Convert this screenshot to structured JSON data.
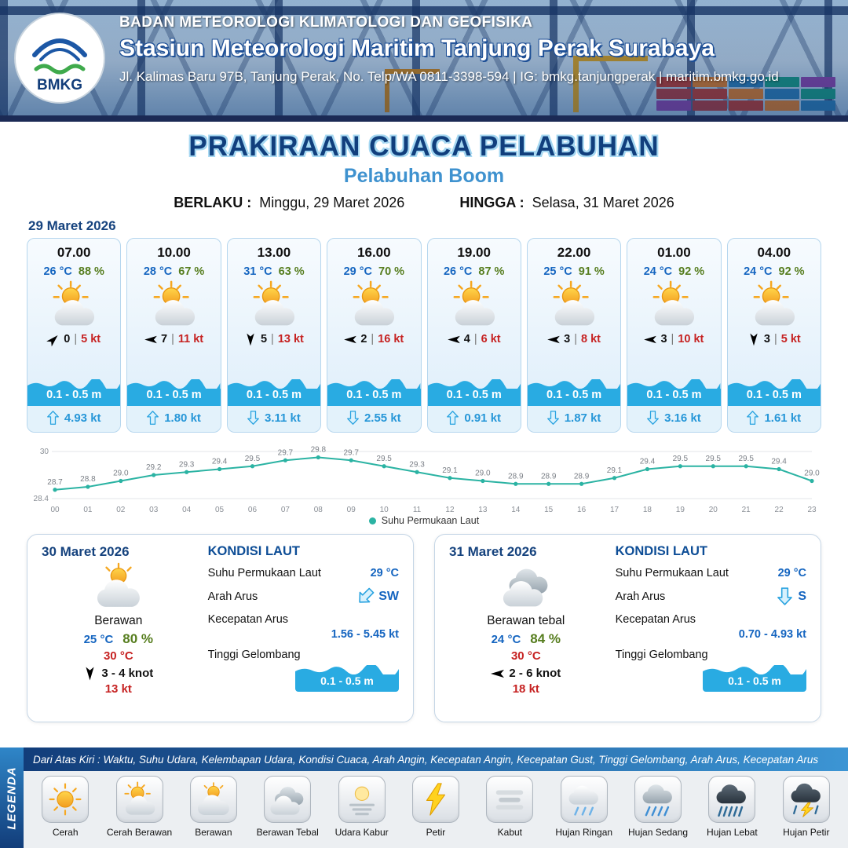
{
  "header": {
    "logo_text": "BMKG",
    "org": "BADAN METEOROLOGI KLIMATOLOGI DAN GEOFISIKA",
    "station": "Stasiun Meteorologi Maritim Tanjung Perak Surabaya",
    "address": "Jl. Kalimas Baru 97B, Tanjung Perak, No. Telp/WA 0811-3398-594 | IG: bmkg.tanjungperak | maritim.bmkg.go.id"
  },
  "title": {
    "main": "PRAKIRAAN CUACA PELABUHAN",
    "port": "Pelabuhan Boom",
    "berlaku_label": "BERLAKU :",
    "berlaku_value": "Minggu, 29 Maret 2026",
    "hingga_label": "HINGGA :",
    "hingga_value": "Selasa, 31 Maret 2026"
  },
  "forecast": {
    "date": "29 Maret 2026",
    "divider": "|",
    "cards": [
      {
        "time": "07.00",
        "temp": "26 °C",
        "humidity": "88 %",
        "icon": "cerah-berawan",
        "wind_dir": "NE",
        "wind_speed": "0",
        "gust": "5 kt",
        "wave": "0.1 - 0.5 m",
        "current_dir": "N",
        "current_speed": "4.93 kt"
      },
      {
        "time": "10.00",
        "temp": "28 °C",
        "humidity": "67 %",
        "icon": "cerah-berawan",
        "wind_dir": "W",
        "wind_speed": "7",
        "gust": "11 kt",
        "wave": "0.1 - 0.5 m",
        "current_dir": "N",
        "current_speed": "1.80 kt"
      },
      {
        "time": "13.00",
        "temp": "31 °C",
        "humidity": "63 %",
        "icon": "cerah-berawan",
        "wind_dir": "S",
        "wind_speed": "5",
        "gust": "13 kt",
        "wave": "0.1 - 0.5 m",
        "current_dir": "S",
        "current_speed": "3.11 kt"
      },
      {
        "time": "16.00",
        "temp": "29 °C",
        "humidity": "70 %",
        "icon": "cerah-berawan",
        "wind_dir": "W",
        "wind_speed": "2",
        "gust": "16 kt",
        "wave": "0.1 - 0.5 m",
        "current_dir": "S",
        "current_speed": "2.55 kt"
      },
      {
        "time": "19.00",
        "temp": "26 °C",
        "humidity": "87 %",
        "icon": "cerah-berawan",
        "wind_dir": "W",
        "wind_speed": "4",
        "gust": "6 kt",
        "wave": "0.1 - 0.5 m",
        "current_dir": "N",
        "current_speed": "0.91 kt"
      },
      {
        "time": "22.00",
        "temp": "25 °C",
        "humidity": "91 %",
        "icon": "cerah-berawan",
        "wind_dir": "W",
        "wind_speed": "3",
        "gust": "8 kt",
        "wave": "0.1 - 0.5 m",
        "current_dir": "S",
        "current_speed": "1.87 kt"
      },
      {
        "time": "01.00",
        "temp": "24 °C",
        "humidity": "92 %",
        "icon": "cerah-berawan",
        "wind_dir": "W",
        "wind_speed": "3",
        "gust": "10 kt",
        "wave": "0.1 - 0.5 m",
        "current_dir": "S",
        "current_speed": "3.16 kt"
      },
      {
        "time": "04.00",
        "temp": "24 °C",
        "humidity": "92 %",
        "icon": "cerah-berawan",
        "wind_dir": "S",
        "wind_speed": "3",
        "gust": "5 kt",
        "wave": "0.1 - 0.5 m",
        "current_dir": "N",
        "current_speed": "1.61 kt"
      }
    ]
  },
  "chart_data": {
    "type": "line",
    "title": "",
    "series_name": "Suhu Permukaan Laut",
    "x": [
      "00",
      "01",
      "02",
      "03",
      "04",
      "05",
      "06",
      "07",
      "08",
      "09",
      "10",
      "11",
      "12",
      "13",
      "14",
      "15",
      "16",
      "17",
      "18",
      "19",
      "20",
      "21",
      "22",
      "23"
    ],
    "values": [
      28.7,
      28.8,
      29.0,
      29.2,
      29.3,
      29.4,
      29.5,
      29.7,
      29.8,
      29.7,
      29.5,
      29.3,
      29.1,
      29.0,
      28.9,
      28.9,
      28.9,
      29.1,
      29.4,
      29.5,
      29.5,
      29.5,
      29.4,
      29.0
    ],
    "ylim": [
      28.4,
      30
    ],
    "line_color": "#2bb3a3",
    "grid": true,
    "legend_position": "bottom"
  },
  "daily": [
    {
      "date": "30 Maret 2026",
      "icon": "berawan",
      "condition": "Berawan",
      "temp_min": "25 °C",
      "humidity": "80 %",
      "temp_max": "30 °C",
      "wind_dir": "S",
      "wind_range": "3  - 4 knot",
      "gust": "13 kt",
      "sea": {
        "title": "KONDISI LAUT",
        "sst_label": "Suhu Permukaan Laut",
        "sst_value": "29 °C",
        "current_label": "Arah Arus",
        "current_dir": "SW",
        "speed_label": "Kecepatan Arus",
        "speed_value": "1.56  - 5.45 kt",
        "wave_label": "Tinggi Gelombang",
        "wave_value": "0.1 - 0.5 m"
      }
    },
    {
      "date": "31 Maret 2026",
      "icon": "berawan-tebal",
      "condition": "Berawan tebal",
      "temp_min": "24 °C",
      "humidity": "84 %",
      "temp_max": "30 °C",
      "wind_dir": "W",
      "wind_range": "2  - 6 knot",
      "gust": "18 kt",
      "sea": {
        "title": "KONDISI LAUT",
        "sst_label": "Suhu Permukaan Laut",
        "sst_value": "29 °C",
        "current_label": "Arah Arus",
        "current_dir": "S",
        "speed_label": "Kecepatan Arus",
        "speed_value": "0.70 - 4.93 kt",
        "wave_label": "Tinggi Gelombang",
        "wave_value": "0.1 - 0.5 m"
      }
    }
  ],
  "legend": {
    "title": "LEGENDA",
    "description": "Dari Atas Kiri : Waktu, Suhu Udara, Kelembapan Udara, Kondisi Cuaca, Arah Angin, Kecepatan Angin, Kecepatan Gust, Tinggi Gelombang, Arah Arus, Kecepatan Arus",
    "items": [
      {
        "icon": "cerah",
        "label": "Cerah"
      },
      {
        "icon": "cerah-berawan",
        "label": "Cerah Berawan"
      },
      {
        "icon": "berawan",
        "label": "Berawan"
      },
      {
        "icon": "berawan-tebal",
        "label": "Berawan Tebal"
      },
      {
        "icon": "udara-kabur",
        "label": "Udara Kabur"
      },
      {
        "icon": "petir",
        "label": "Petir"
      },
      {
        "icon": "kabut",
        "label": "Kabut"
      },
      {
        "icon": "hujan-ringan",
        "label": "Hujan Ringan"
      },
      {
        "icon": "hujan-sedang",
        "label": "Hujan Sedang"
      },
      {
        "icon": "hujan-lebat",
        "label": "Hujan Lebat"
      },
      {
        "icon": "hujan-petir",
        "label": "Hujan Petir"
      }
    ]
  },
  "colors": {
    "wave_blue": "#29abe2",
    "temp_blue": "#1565c0",
    "humidity_green": "#567d1e",
    "gust_red": "#c62222",
    "title_navy": "#113f7d",
    "chart_line": "#2bb3a3"
  }
}
